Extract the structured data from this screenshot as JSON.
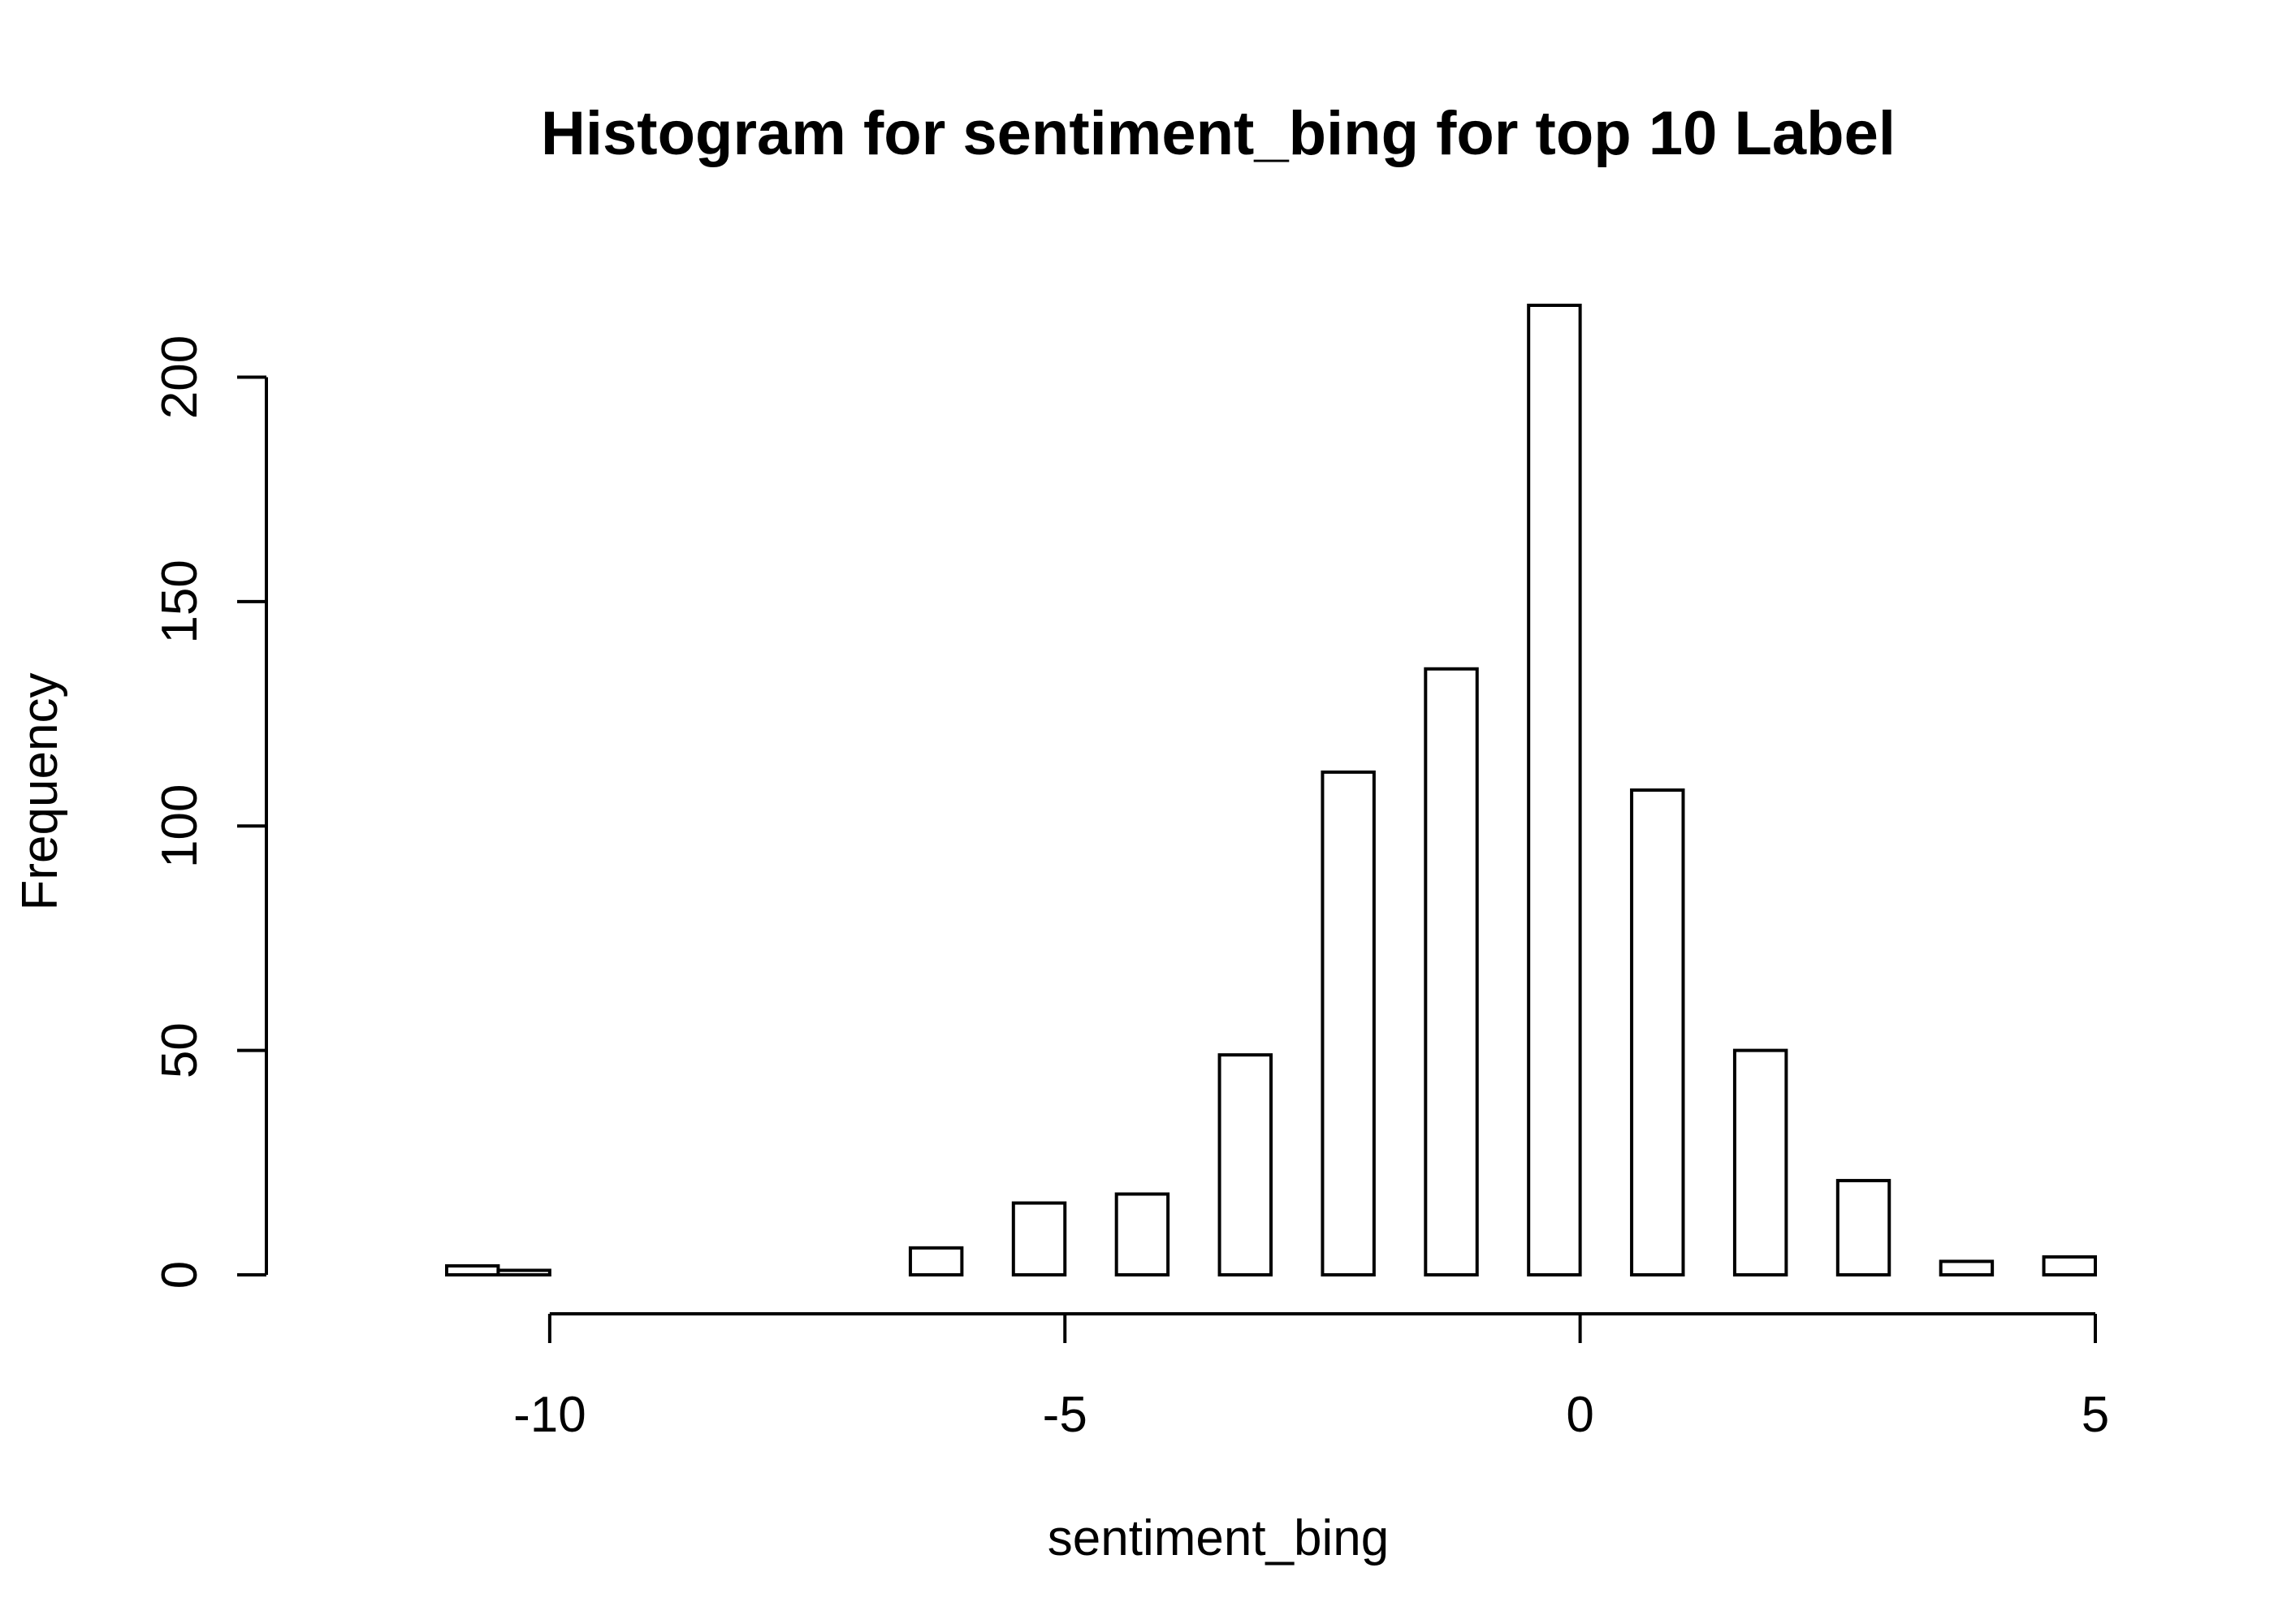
{
  "chart_data": {
    "type": "bar",
    "title": "Histogram for sentiment_bing for top 10 Label",
    "xlabel": "sentiment_bing",
    "ylabel": "Frequency",
    "xlim": [
      -11,
      5
    ],
    "ylim": [
      0,
      216
    ],
    "x_ticks": [
      -10,
      -5,
      0,
      5
    ],
    "y_ticks": [
      0,
      50,
      100,
      150,
      200
    ],
    "grid": false,
    "bars": [
      {
        "x0": -11.0,
        "x1": -10.5,
        "value": 2
      },
      {
        "x0": -10.5,
        "x1": -10.0,
        "value": 1
      },
      {
        "x0": -6.5,
        "x1": -6.0,
        "value": 6
      },
      {
        "x0": -5.5,
        "x1": -5.0,
        "value": 16
      },
      {
        "x0": -4.5,
        "x1": -4.0,
        "value": 18
      },
      {
        "x0": -3.5,
        "x1": -3.0,
        "value": 49
      },
      {
        "x0": -2.5,
        "x1": -2.0,
        "value": 112
      },
      {
        "x0": -1.5,
        "x1": -1.0,
        "value": 135
      },
      {
        "x0": -0.5,
        "x1": 0.0,
        "value": 216
      },
      {
        "x0": 0.5,
        "x1": 1.0,
        "value": 108
      },
      {
        "x0": 1.5,
        "x1": 2.0,
        "value": 50
      },
      {
        "x0": 2.5,
        "x1": 3.0,
        "value": 21
      },
      {
        "x0": 3.5,
        "x1": 4.0,
        "value": 3
      },
      {
        "x0": 4.5,
        "x1": 5.0,
        "value": 4
      }
    ]
  }
}
